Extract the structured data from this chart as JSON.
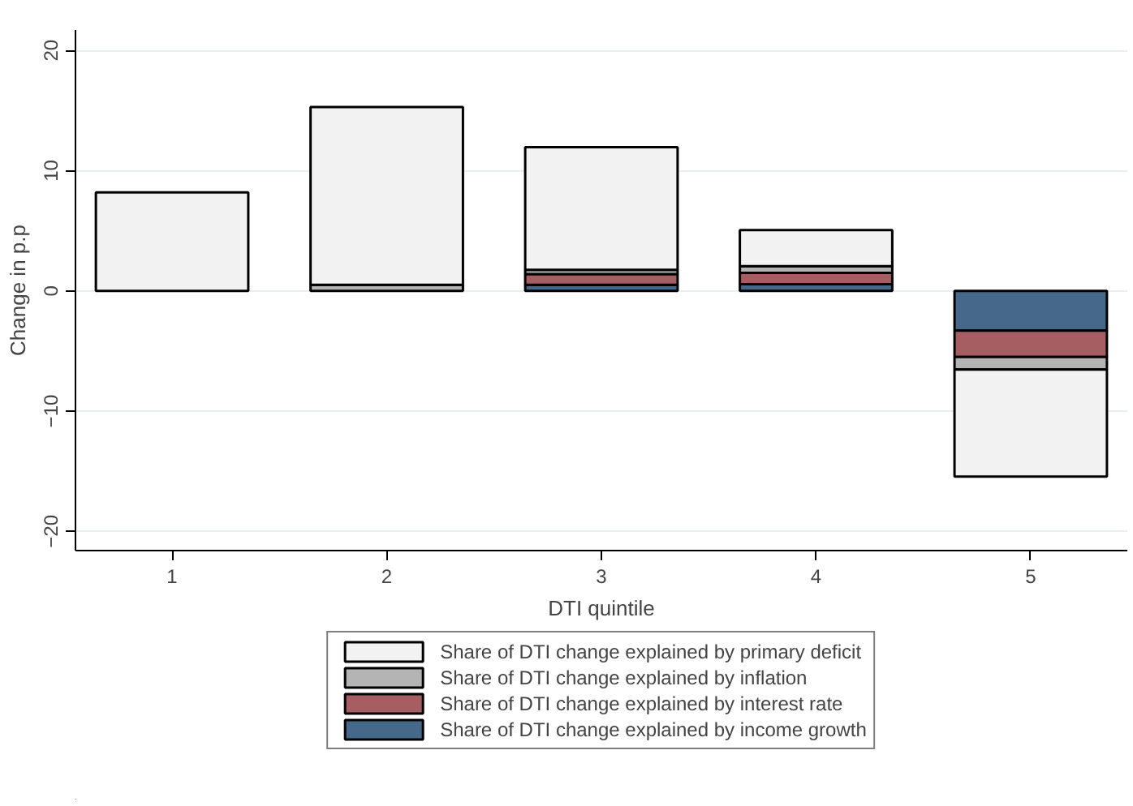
{
  "chart_data": {
    "type": "bar",
    "stacked": true,
    "xlabel": "DTI quintile",
    "ylabel": "Change in p.p",
    "categories": [
      "1",
      "2",
      "3",
      "4",
      "5"
    ],
    "series": [
      {
        "name": "Share of DTI change explained by income growth",
        "color": "#466889",
        "values": [
          null,
          null,
          0.5,
          0.55,
          -3.3
        ]
      },
      {
        "name": "Share of DTI change explained by interest rate",
        "color": "#a65e63",
        "values": [
          null,
          null,
          0.9,
          0.95,
          -2.2
        ]
      },
      {
        "name": "Share of DTI change explained by inflation",
        "color": "#b4b4b4",
        "values": [
          null,
          0.5,
          0.35,
          0.55,
          -1.05
        ]
      },
      {
        "name": "Share of DTI change explained by primary deficit",
        "color": "#f2f2f2",
        "values": [
          8.2,
          14.8,
          10.2,
          3,
          -8.9
        ]
      }
    ],
    "ylim": [
      -21.6,
      21.7
    ],
    "yticks": [
      -20,
      -10,
      0,
      10,
      20
    ],
    "grid": "y",
    "legend": "bottom"
  }
}
